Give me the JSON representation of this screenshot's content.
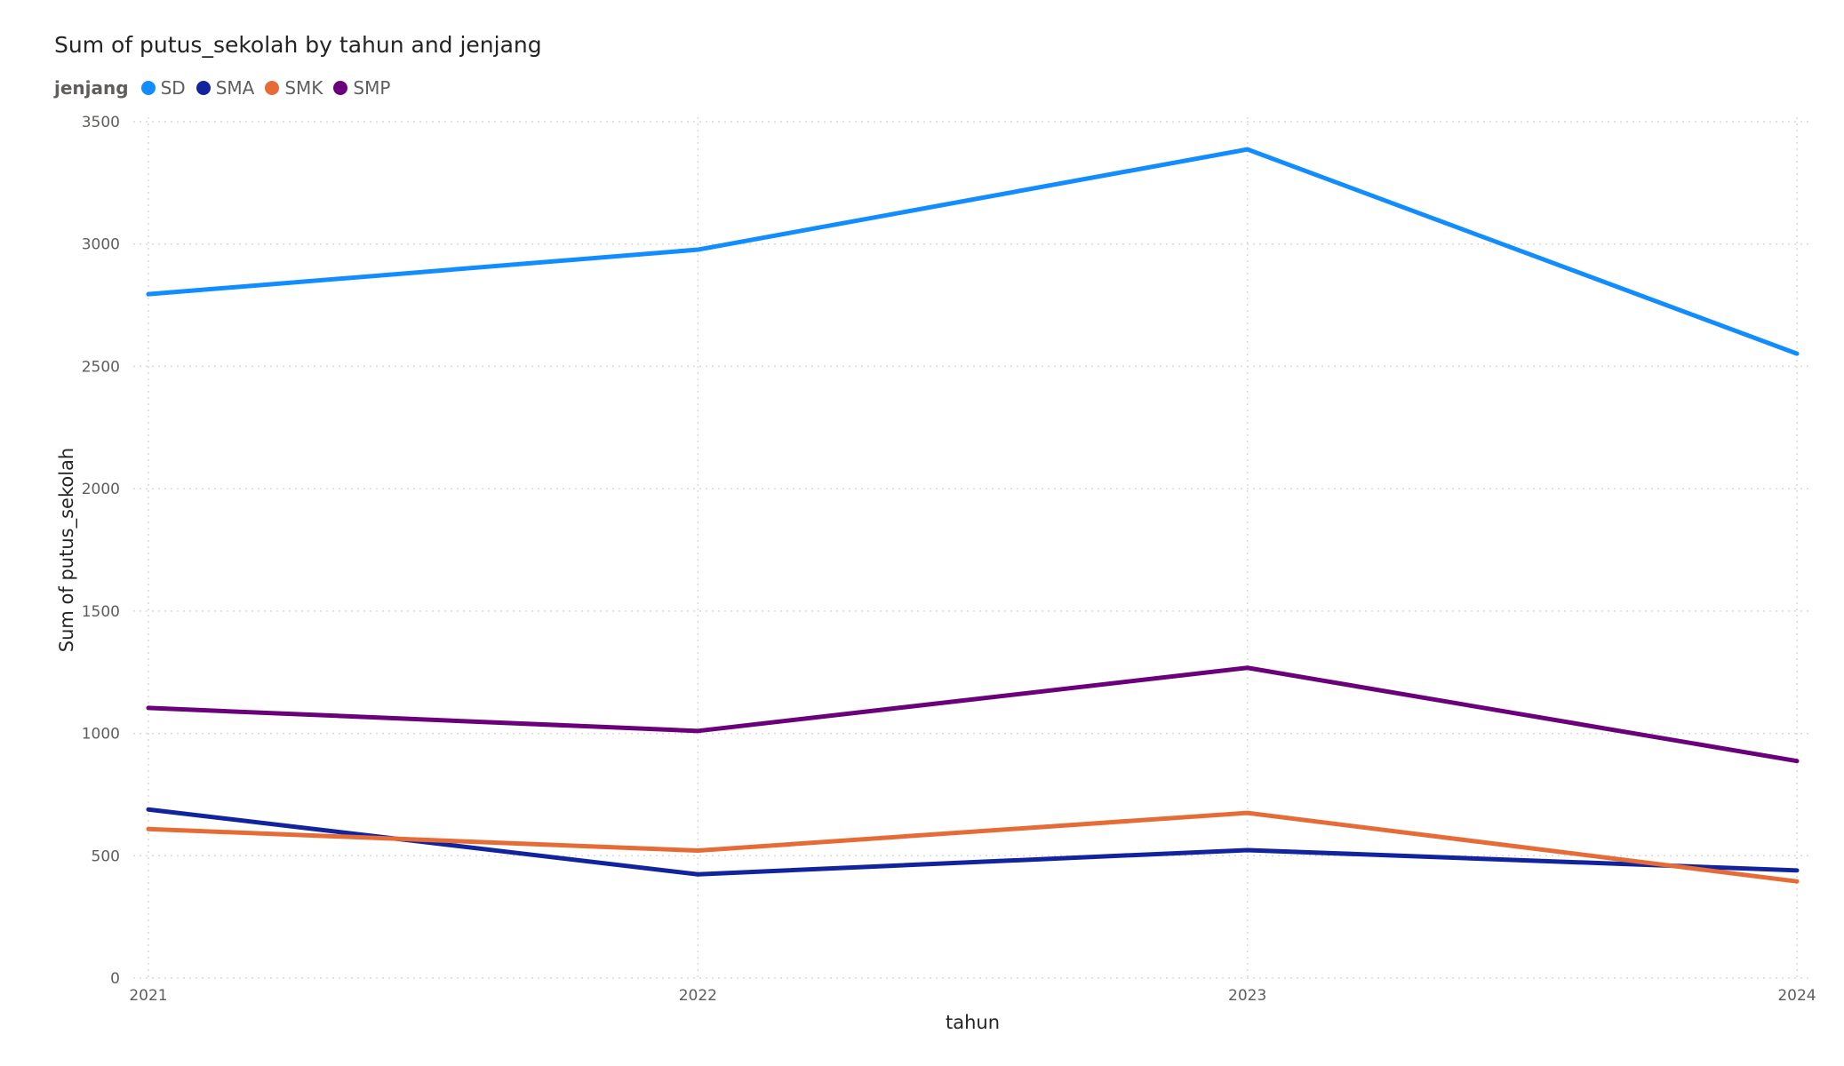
{
  "chart_data": {
    "type": "line",
    "title": "Sum of putus_sekolah by tahun and jenjang",
    "xlabel": "tahun",
    "ylabel": "Sum of putus_sekolah",
    "legend_title": "jenjang",
    "legend_position": "top-left",
    "grid": true,
    "x": [
      "2021",
      "2022",
      "2023",
      "2024"
    ],
    "ylim": [
      0,
      3500
    ],
    "yticks": [
      "0",
      "500",
      "1000",
      "1500",
      "2000",
      "2500",
      "3000",
      "3500"
    ],
    "series": [
      {
        "name": "SD",
        "color": "#118DFF",
        "values": [
          2795,
          2977,
          3387,
          2552
        ]
      },
      {
        "name": "SMA",
        "color": "#12239E",
        "values": [
          689,
          424,
          523,
          440
        ]
      },
      {
        "name": "SMK",
        "color": "#E66C37",
        "values": [
          609,
          521,
          675,
          395
        ]
      },
      {
        "name": "SMP",
        "color": "#6B007B",
        "values": [
          1104,
          1010,
          1268,
          887
        ]
      }
    ]
  }
}
